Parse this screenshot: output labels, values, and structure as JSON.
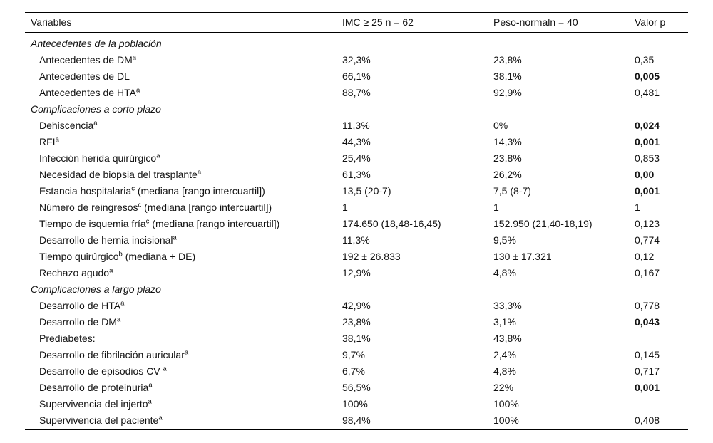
{
  "page": {
    "background": "#ffffff",
    "text_color": "#111111"
  },
  "table": {
    "columns": [
      "Variables",
      "IMC ≥ 25 n = 62",
      "Peso-normaln = 40",
      "Valor p"
    ],
    "rows": [
      {
        "type": "section",
        "label": "Antecedentes de la población"
      },
      {
        "type": "data",
        "label": "Antecedentes de DM",
        "sup": "a",
        "suffix": "",
        "imc": "32,3%",
        "normal": "23,8%",
        "p": "0,35",
        "p_bold": false
      },
      {
        "type": "data",
        "label": "Antecedentes de DL",
        "sup": "",
        "suffix": "",
        "imc": "66,1%",
        "normal": "38,1%",
        "p": "0,005",
        "p_bold": true
      },
      {
        "type": "data",
        "label": "Antecedentes de HTA",
        "sup": "a",
        "suffix": "",
        "imc": "88,7%",
        "normal": "92,9%",
        "p": "0,481",
        "p_bold": false
      },
      {
        "type": "section",
        "label": "Complicaciones a corto plazo"
      },
      {
        "type": "data",
        "label": "Dehiscencia",
        "sup": "a",
        "suffix": "",
        "imc": "11,3%",
        "normal": "0%",
        "p": "0,024",
        "p_bold": true
      },
      {
        "type": "data",
        "label": "RFI",
        "sup": "a",
        "suffix": "",
        "imc": "44,3%",
        "normal": "14,3%",
        "p": "0,001",
        "p_bold": true
      },
      {
        "type": "data",
        "label": "Infección herida quirúrgico",
        "sup": "a",
        "suffix": "",
        "imc": "25,4%",
        "normal": "23,8%",
        "p": "0,853",
        "p_bold": false
      },
      {
        "type": "data",
        "label": "Necesidad de biopsia del trasplante",
        "sup": "a",
        "suffix": "",
        "imc": "61,3%",
        "normal": "26,2%",
        "p": "0,00",
        "p_bold": true
      },
      {
        "type": "data",
        "label": "Estancia hospitalaria",
        "sup": "c",
        "suffix": " (mediana [rango intercuartil])",
        "imc": "13,5 (20-7)",
        "normal": "7,5 (8-7)",
        "p": "0,001",
        "p_bold": true
      },
      {
        "type": "data",
        "label": "Número de reingresos",
        "sup": "c",
        "suffix": " (mediana [rango intercuartil])",
        "imc": "1",
        "normal": "1",
        "p": "1",
        "p_bold": false
      },
      {
        "type": "data",
        "label": "Tiempo de isquemia fría",
        "sup": "c",
        "suffix": " (mediana [rango intercuartil])",
        "imc": "174.650 (18,48-16,45)",
        "normal": "152.950 (21,40-18,19)",
        "p": "0,123",
        "p_bold": false
      },
      {
        "type": "data",
        "label": "Desarrollo de hernia incisional",
        "sup": "a",
        "suffix": "",
        "imc": "11,3%",
        "normal": "9,5%",
        "p": "0,774",
        "p_bold": false
      },
      {
        "type": "data",
        "label": "Tiempo quirúrgico",
        "sup": "b",
        "suffix": " (mediana + DE)",
        "imc": "192 ± 26.833",
        "normal": "130 ± 17.321",
        "p": "0,12",
        "p_bold": false
      },
      {
        "type": "data",
        "label": "Rechazo agudo",
        "sup": "a",
        "suffix": "",
        "imc": "12,9%",
        "normal": "4,8%",
        "p": "0,167",
        "p_bold": false
      },
      {
        "type": "section",
        "label": "Complicaciones a largo plazo"
      },
      {
        "type": "data",
        "label": "Desarrollo de HTA",
        "sup": "a",
        "suffix": "",
        "imc": "42,9%",
        "normal": "33,3%",
        "p": "0,778",
        "p_bold": false
      },
      {
        "type": "data",
        "label": "Desarrollo de DM",
        "sup": "a",
        "suffix": "",
        "imc": "23,8%",
        "normal": "3,1%",
        "p": "0,043",
        "p_bold": true
      },
      {
        "type": "data",
        "label": "Prediabetes:",
        "sup": "",
        "suffix": "",
        "imc": "38,1%",
        "normal": "43,8%",
        "p": "",
        "p_bold": false
      },
      {
        "type": "data",
        "label": "Desarrollo de fibrilación auricular",
        "sup": "a",
        "suffix": "",
        "imc": "9,7%",
        "normal": "2,4%",
        "p": "0,145",
        "p_bold": false
      },
      {
        "type": "data",
        "label": "Desarrollo de episodios CV ",
        "sup": "a",
        "suffix": "",
        "imc": "6,7%",
        "normal": "4,8%",
        "p": "0,717",
        "p_bold": false
      },
      {
        "type": "data",
        "label": "Desarrollo de proteinuria",
        "sup": "a",
        "suffix": "",
        "imc": "56,5%",
        "normal": "22%",
        "p": "0,001",
        "p_bold": true
      },
      {
        "type": "data",
        "label": "Supervivencia del injerto",
        "sup": "a",
        "suffix": "",
        "imc": "100%",
        "normal": "100%",
        "p": "",
        "p_bold": false
      },
      {
        "type": "data",
        "label": "Supervivencia del paciente",
        "sup": "a",
        "suffix": "",
        "imc": "98,4%",
        "normal": "100%",
        "p": "0,408",
        "p_bold": false
      }
    ]
  }
}
